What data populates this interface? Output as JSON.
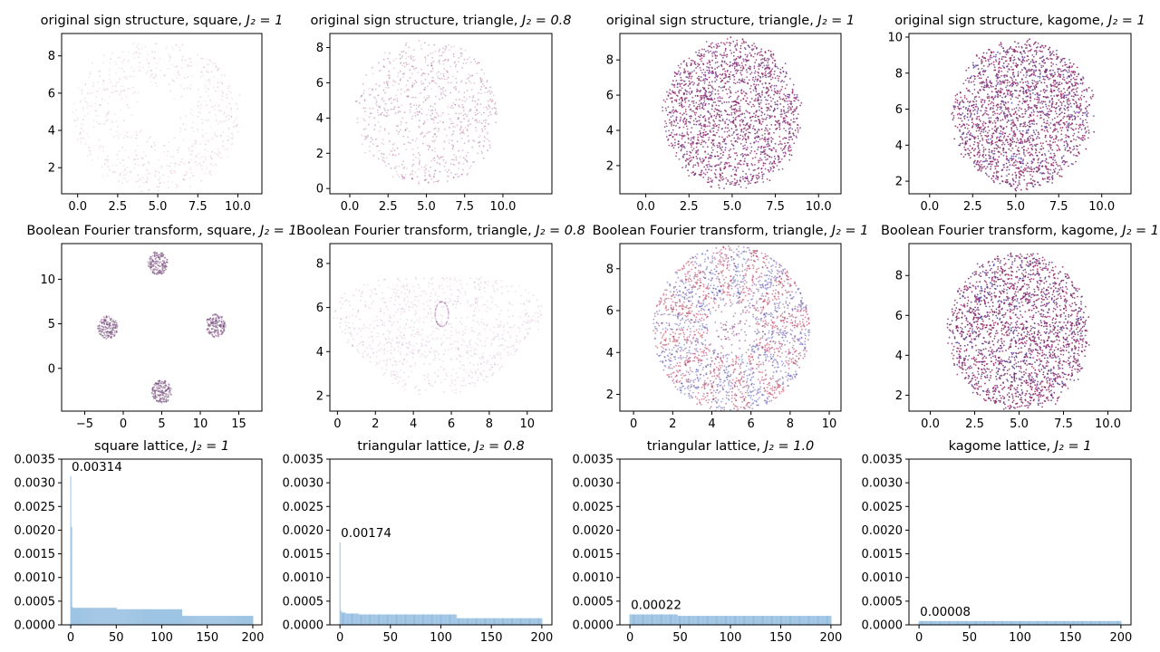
{
  "figure": {
    "name": "sign structure and Boolean Fourier transform figure"
  },
  "chart_data": [
    {
      "type": "scatter",
      "panel": "row1-col1",
      "title": "original sign structure, square, ",
      "title_math": "J₂ = 1",
      "xlim": [
        -1,
        11.5
      ],
      "ylim": [
        0.6,
        9.2
      ],
      "xticks": [
        0,
        2.5,
        5,
        7.5,
        10
      ],
      "xticklabels": [
        "0.0",
        "2.5",
        "5.0",
        "7.5",
        "10.0"
      ],
      "yticks": [
        2,
        4,
        6,
        8
      ],
      "yticklabels": [
        "2",
        "4",
        "6",
        "8"
      ],
      "cloud": {
        "kind": "disk",
        "cx": 5.0,
        "cy": 4.8,
        "rx": 5.2,
        "ry": 4.0,
        "n": 650,
        "opacity": 0.18,
        "hole": 0.25
      },
      "colors": [
        "#c06080",
        "#8b2a6b",
        "#a888bb"
      ]
    },
    {
      "type": "scatter",
      "panel": "row1-col2",
      "title": "original sign structure, triangle, ",
      "title_math": "J₂ = 0.8",
      "xlim": [
        -1.3,
        13.2
      ],
      "ylim": [
        -0.3,
        8.8
      ],
      "xticks": [
        0,
        2.5,
        5,
        7.5,
        10
      ],
      "xticklabels": [
        "0.0",
        "2.5",
        "5.0",
        "7.5",
        "10.0"
      ],
      "yticks": [
        0,
        2,
        4,
        6,
        8
      ],
      "yticklabels": [
        "0",
        "2",
        "4",
        "6",
        "8"
      ],
      "cloud": {
        "kind": "disk",
        "cx": 5.1,
        "cy": 4.3,
        "rx": 4.6,
        "ry": 4.1,
        "n": 850,
        "opacity": 0.35,
        "hole": 0
      },
      "colors": [
        "#a04a88",
        "#7a2a6b",
        "#c07aa0"
      ]
    },
    {
      "type": "scatter",
      "panel": "row1-col3",
      "title": "original sign structure, triangle, ",
      "title_math": "J₂ = 1",
      "xlim": [
        -1.5,
        11.3
      ],
      "ylim": [
        0.4,
        9.5
      ],
      "xticks": [
        0,
        2.5,
        5,
        7.5,
        10
      ],
      "xticklabels": [
        "0.0",
        "2.5",
        "5.0",
        "7.5",
        "10.0"
      ],
      "yticks": [
        2,
        4,
        6,
        8
      ],
      "yticklabels": [
        "2",
        "4",
        "6",
        "8"
      ],
      "cloud": {
        "kind": "disk",
        "cx": 5.0,
        "cy": 4.9,
        "rx": 3.9,
        "ry": 4.2,
        "n": 1900,
        "opacity": 0.8,
        "hole": 0
      },
      "colors": [
        "#7a1a5e",
        "#8b2a6b",
        "#6a3a9a",
        "#a0306a"
      ]
    },
    {
      "type": "scatter",
      "panel": "row1-col4",
      "title": "original sign structure, kagome, ",
      "title_math": "J₂ = 1",
      "xlim": [
        -1.2,
        11.7
      ],
      "ylim": [
        1.3,
        10.2
      ],
      "xticks": [
        0,
        2.5,
        5,
        7.5,
        10
      ],
      "xticklabels": [
        "0.0",
        "2.5",
        "5.0",
        "7.5",
        "10.0"
      ],
      "yticks": [
        2,
        4,
        6,
        8,
        10
      ],
      "yticklabels": [
        "2",
        "4",
        "6",
        "8",
        "10"
      ],
      "cloud": {
        "kind": "disk",
        "cx": 5.4,
        "cy": 5.7,
        "rx": 4.0,
        "ry": 4.1,
        "n": 2100,
        "opacity": 0.85,
        "hole": 0
      },
      "colors": [
        "#7a1a5e",
        "#8b2a6b",
        "#5a4aa8",
        "#a0306a"
      ]
    },
    {
      "type": "scatter",
      "panel": "row2-col1",
      "title": "Boolean Fourier transform, square, ",
      "title_math": "J₂ = 1",
      "xlim": [
        -8,
        18
      ],
      "ylim": [
        -4.8,
        14
      ],
      "xticks": [
        -5,
        0,
        5,
        10,
        15
      ],
      "xticklabels": [
        "−5",
        "0",
        "5",
        "10",
        "15"
      ],
      "yticks": [
        0,
        5,
        10
      ],
      "yticklabels": [
        "0",
        "5",
        "10"
      ],
      "cloud": {
        "kind": "clusters",
        "centers": [
          [
            4.5,
            11.8
          ],
          [
            -2.0,
            4.6
          ],
          [
            12.0,
            4.8
          ],
          [
            5.0,
            -2.6
          ]
        ],
        "r": 1.3,
        "n": 700,
        "opacity": 0.55
      },
      "colors": [
        "#7a4a7a",
        "#9a6a9a",
        "#5a3a6a"
      ]
    },
    {
      "type": "scatter",
      "panel": "row2-col2",
      "title": "Boolean Fourier transform, triangle, ",
      "title_math": "J₂ = 0.8",
      "xlim": [
        -0.4,
        11.3
      ],
      "ylim": [
        1.3,
        8.9
      ],
      "xticks": [
        0,
        2,
        4,
        6,
        8,
        10
      ],
      "xticklabels": [
        "0",
        "2",
        "4",
        "6",
        "8",
        "10"
      ],
      "yticks": [
        2,
        4,
        6,
        8
      ],
      "yticklabels": [
        "2",
        "4",
        "6",
        "8"
      ],
      "cloud": {
        "kind": "blob",
        "cx": 5.3,
        "cy": 5.0,
        "rx": 5.3,
        "ry": 2.7,
        "n": 900,
        "opacity": 0.2,
        "ring": [
          5.5,
          5.7,
          0.35
        ]
      },
      "colors": [
        "#c06a90",
        "#a06aa0",
        "#8a4a8a"
      ]
    },
    {
      "type": "scatter",
      "panel": "row2-col3",
      "title": "Boolean Fourier transform, triangle, ",
      "title_math": "J₂ = 1",
      "xlim": [
        -0.7,
        10.6
      ],
      "ylim": [
        1.2,
        9.2
      ],
      "xticks": [
        0,
        2,
        4,
        6,
        8,
        10
      ],
      "xticklabels": [
        "0",
        "2",
        "4",
        "6",
        "8",
        "10"
      ],
      "yticks": [
        2,
        4,
        6,
        8
      ],
      "yticklabels": [
        "2",
        "4",
        "6",
        "8"
      ],
      "cloud": {
        "kind": "annulus",
        "cx": 5.0,
        "cy": 5.1,
        "r_in": 1.2,
        "r_out": 4.0,
        "n": 2200,
        "opacity": 0.55,
        "petals": 12
      },
      "colors": [
        "#c03050",
        "#5a5aba",
        "#8a3a7a",
        "#d06070"
      ]
    },
    {
      "type": "scatter",
      "panel": "row2-col4",
      "title": "Boolean Fourier transform, kagome, ",
      "title_math": "J₂ = 1",
      "xlim": [
        -1.2,
        11.3
      ],
      "ylim": [
        1.2,
        9.6
      ],
      "xticks": [
        0,
        2.5,
        5,
        7.5,
        10
      ],
      "xticklabels": [
        "0.0",
        "2.5",
        "5.0",
        "7.5",
        "10.0"
      ],
      "yticks": [
        2,
        4,
        6,
        8
      ],
      "yticklabels": [
        "2",
        "4",
        "6",
        "8"
      ],
      "cloud": {
        "kind": "disk",
        "cx": 5.0,
        "cy": 5.2,
        "rx": 3.9,
        "ry": 3.9,
        "n": 2100,
        "opacity": 0.85,
        "hole": 0
      },
      "colors": [
        "#7a1a5e",
        "#8b2a6b",
        "#4a3a9a",
        "#a0306a"
      ]
    },
    {
      "type": "bar",
      "panel": "row3-col1",
      "title": "square lattice, ",
      "title_math": "J₂ = 1",
      "xlim": [
        -10,
        210
      ],
      "ylim": [
        0,
        0.0035
      ],
      "xticks": [
        0,
        50,
        100,
        150,
        200
      ],
      "xticklabels": [
        "0",
        "50",
        "100",
        "150",
        "200"
      ],
      "yticks": [
        0,
        0.0005,
        0.001,
        0.0015,
        0.002,
        0.0025,
        0.003,
        0.0035
      ],
      "yticklabels": [
        "0.0000",
        "0.0005",
        "0.0010",
        "0.0015",
        "0.0020",
        "0.0025",
        "0.0030",
        "0.0035"
      ],
      "annotation": "0.00314",
      "n_bars": 201,
      "segments": [
        {
          "from": 0,
          "to": 0,
          "value": 0.00314
        },
        {
          "from": 1,
          "to": 1,
          "value": 0.00207
        },
        {
          "from": 2,
          "to": 2,
          "value": 0.00038
        },
        {
          "from": 3,
          "to": 50,
          "value": 0.00036
        },
        {
          "from": 51,
          "to": 122,
          "value": 0.00033
        },
        {
          "from": 123,
          "to": 200,
          "value": 0.00019
        }
      ]
    },
    {
      "type": "bar",
      "panel": "row3-col2",
      "title": "triangular lattice, ",
      "title_math": "J₂ = 0.8",
      "xlim": [
        -10,
        210
      ],
      "ylim": [
        0,
        0.0035
      ],
      "xticks": [
        0,
        50,
        100,
        150,
        200
      ],
      "xticklabels": [
        "0",
        "50",
        "100",
        "150",
        "200"
      ],
      "yticks": [
        0,
        0.0005,
        0.001,
        0.0015,
        0.002,
        0.0025,
        0.003,
        0.0035
      ],
      "yticklabels": [
        "0.0000",
        "0.0005",
        "0.0010",
        "0.0015",
        "0.0020",
        "0.0025",
        "0.0030",
        "0.0035"
      ],
      "annotation": "0.00174",
      "n_bars": 201,
      "segments": [
        {
          "from": 0,
          "to": 0,
          "value": 0.00174
        },
        {
          "from": 1,
          "to": 1,
          "value": 0.0003
        },
        {
          "from": 2,
          "to": 5,
          "value": 0.00026
        },
        {
          "from": 6,
          "to": 18,
          "value": 0.00024
        },
        {
          "from": 19,
          "to": 115,
          "value": 0.00022
        },
        {
          "from": 116,
          "to": 200,
          "value": 0.00014
        }
      ]
    },
    {
      "type": "bar",
      "panel": "row3-col3",
      "title": "triangular lattice, ",
      "title_math": "J₂ = 1.0",
      "xlim": [
        -10,
        210
      ],
      "ylim": [
        0,
        0.0035
      ],
      "xticks": [
        0,
        50,
        100,
        150,
        200
      ],
      "xticklabels": [
        "0",
        "50",
        "100",
        "150",
        "200"
      ],
      "yticks": [
        0,
        0.0005,
        0.001,
        0.0015,
        0.002,
        0.0025,
        0.003,
        0.0035
      ],
      "yticklabels": [
        "0.0000",
        "0.0005",
        "0.0010",
        "0.0015",
        "0.0020",
        "0.0025",
        "0.0030",
        "0.0035"
      ],
      "annotation": "0.00022",
      "n_bars": 201,
      "segments": [
        {
          "from": 0,
          "to": 47,
          "value": 0.00022
        },
        {
          "from": 48,
          "to": 200,
          "value": 0.00019
        }
      ]
    },
    {
      "type": "bar",
      "panel": "row3-col4",
      "title": "kagome lattice, ",
      "title_math": "J₂ = 1",
      "xlim": [
        -10,
        210
      ],
      "ylim": [
        0,
        0.0035
      ],
      "xticks": [
        0,
        50,
        100,
        150,
        200
      ],
      "xticklabels": [
        "0",
        "50",
        "100",
        "150",
        "200"
      ],
      "yticks": [
        0,
        0.0005,
        0.001,
        0.0015,
        0.002,
        0.0025,
        0.003,
        0.0035
      ],
      "yticklabels": [
        "0.0000",
        "0.0005",
        "0.0010",
        "0.0015",
        "0.0020",
        "0.0025",
        "0.0030",
        "0.0035"
      ],
      "annotation": "0.00008",
      "n_bars": 201,
      "segments": [
        {
          "from": 0,
          "to": 200,
          "value": 8e-05
        }
      ]
    }
  ],
  "bar_color": "#8ab8de",
  "axis_color": "#000000"
}
